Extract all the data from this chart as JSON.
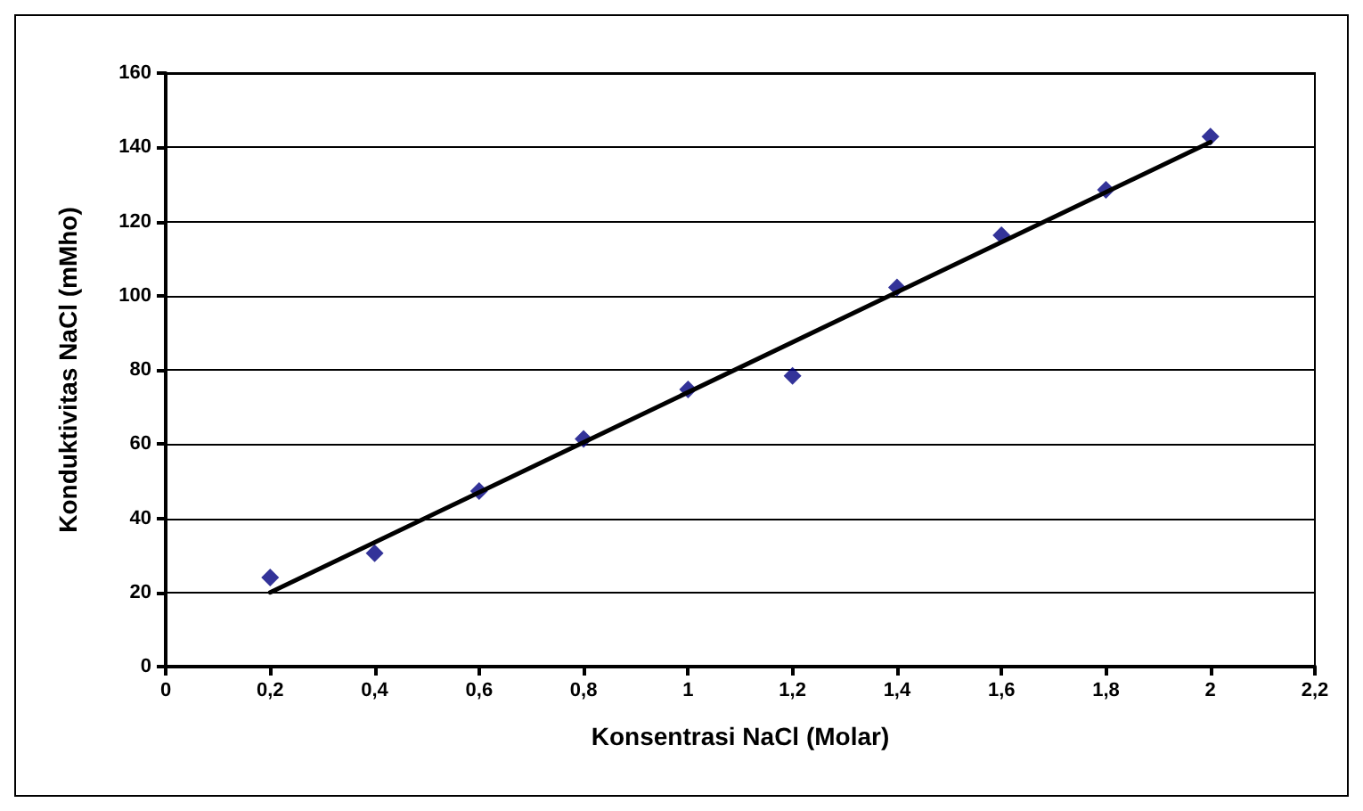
{
  "chart_data": {
    "type": "scatter",
    "xlabel": "Konsentrasi NaCl (Molar)",
    "ylabel": "Konduktivitas NaCl (mMho)",
    "x": [
      0.2,
      0.4,
      0.6,
      0.8,
      1.0,
      1.2,
      1.4,
      1.6,
      1.8,
      2.0
    ],
    "series": [
      {
        "color": "#000080",
        "values": [
          24,
          30.6,
          47.3,
          61.4,
          74.7,
          78.4,
          102.2,
          116.3,
          128.5,
          142.9
        ]
      },
      {
        "type": "line",
        "color": "#000000",
        "x": [
          0.2,
          2.0
        ],
        "values": [
          20,
          141.4
        ],
        "marker": "none"
      }
    ],
    "marker": "diamond",
    "xlim": [
      0,
      2.2
    ],
    "xticks": [
      0,
      {
        "value": 0.2,
        "label": "0,2"
      },
      {
        "value": 0.4,
        "label": "0,4"
      },
      {
        "value": 0.6,
        "label": "0,6"
      },
      {
        "value": 0.8,
        "label": "0,8"
      },
      1,
      {
        "value": 1.2,
        "label": "1,2"
      },
      {
        "value": 1.4,
        "label": "1,4"
      },
      {
        "value": 1.6,
        "label": "1,6"
      },
      {
        "value": 1.8,
        "label": "1,8"
      },
      2,
      {
        "value": 2.2,
        "label": "2,2"
      }
    ],
    "ylim": [
      0,
      160
    ],
    "yticks": [
      0,
      20,
      40,
      60,
      80,
      100,
      120,
      140,
      160
    ],
    "grid": "y"
  }
}
